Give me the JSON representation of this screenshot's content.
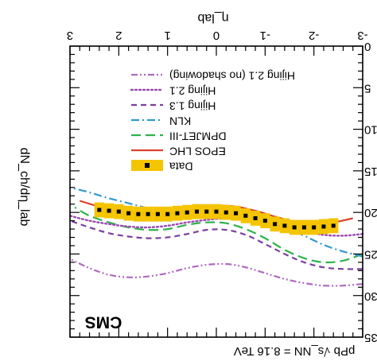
{
  "chart_data": {
    "type": "line",
    "xlabel": "η_lab",
    "ylabel": "dN_ch/dη_lab",
    "xlim": [
      -3,
      3
    ],
    "ylim": [
      0,
      35
    ],
    "xticks": [
      -3,
      -2,
      -1,
      0,
      1,
      2,
      3
    ],
    "yticks": [
      0,
      5,
      10,
      15,
      20,
      25,
      30,
      35
    ],
    "annotation_left": "CMS",
    "annotation_right": "pPb √s_NN = 8.16 TeV",
    "legend_position": "top-right",
    "series": [
      {
        "name": "Data",
        "style": "points-with-band",
        "color": "#000000",
        "band_color": "#f5c400",
        "x": [
          -2.4,
          -2.2,
          -2.0,
          -1.8,
          -1.6,
          -1.4,
          -1.2,
          -1.0,
          -0.8,
          -0.6,
          -0.4,
          -0.2,
          0.0,
          0.2,
          0.4,
          0.6,
          0.8,
          1.0,
          1.2,
          1.4,
          1.6,
          1.8,
          2.0,
          2.2,
          2.4
        ],
        "y": [
          21.6,
          21.7,
          21.8,
          21.8,
          21.8,
          21.6,
          21.4,
          21.0,
          20.7,
          20.4,
          20.1,
          20.0,
          19.9,
          19.9,
          19.9,
          20.0,
          20.1,
          20.2,
          20.2,
          20.2,
          20.2,
          20.1,
          19.9,
          19.8,
          19.7
        ],
        "band": 0.9
      },
      {
        "name": "EPOS LHC",
        "style": "solid",
        "color": "#d9412b",
        "x": [
          -2.8,
          -2.4,
          -2.0,
          -1.6,
          -1.2,
          -0.8,
          -0.4,
          0.0,
          0.4,
          0.8,
          1.2,
          1.6,
          2.0,
          2.4,
          2.8
        ],
        "y": [
          20.7,
          21.2,
          21.3,
          21.1,
          20.5,
          19.8,
          19.3,
          19.2,
          19.5,
          20.0,
          20.2,
          20.1,
          19.7,
          19.3,
          18.6
        ]
      },
      {
        "name": "DPMJET-III",
        "style": "long-dashed",
        "color": "#2db34a",
        "x": [
          -3.0,
          -2.6,
          -2.2,
          -1.8,
          -1.4,
          -1.0,
          -0.6,
          -0.2,
          0.2,
          0.6,
          1.0,
          1.4,
          1.8,
          2.2,
          2.6,
          2.9
        ],
        "y": [
          25.0,
          25.8,
          26.0,
          25.5,
          24.5,
          23.1,
          22.0,
          21.3,
          21.2,
          21.5,
          22.0,
          22.1,
          21.8,
          21.2,
          20.4,
          19.4
        ]
      },
      {
        "name": "KLN",
        "style": "dash-dot",
        "color": "#3399cc",
        "x": [
          -3.0,
          -2.6,
          -2.2,
          -1.8,
          -1.4,
          -1.0,
          -0.6,
          -0.2,
          0.2,
          0.6,
          1.0,
          1.4,
          1.8,
          2.2,
          2.6,
          3.0
        ],
        "y": [
          25.3,
          24.7,
          23.9,
          22.8,
          21.8,
          21.0,
          20.5,
          20.3,
          20.4,
          20.3,
          20.0,
          19.5,
          18.9,
          18.3,
          17.6,
          17.0
        ]
      },
      {
        "name": "Hijing 1.3",
        "style": "dashed",
        "color": "#7b3fa0",
        "x": [
          -3.0,
          -2.6,
          -2.2,
          -1.8,
          -1.4,
          -1.0,
          -0.6,
          -0.2,
          0.2,
          0.6,
          1.0,
          1.4,
          1.8,
          2.2,
          2.6,
          3.0
        ],
        "y": [
          26.8,
          26.8,
          26.6,
          26.0,
          25.0,
          23.8,
          22.7,
          22.1,
          22.1,
          22.6,
          23.0,
          23.1,
          22.9,
          22.5,
          21.8,
          21.0
        ]
      },
      {
        "name": "Hijing 2.1",
        "style": "dotted",
        "color": "#9a4db0",
        "x": [
          -3.0,
          -2.6,
          -2.2,
          -1.8,
          -1.4,
          -1.0,
          -0.6,
          -0.2,
          0.2,
          0.6,
          1.0,
          1.4,
          1.8,
          2.2,
          2.6,
          3.0
        ],
        "y": [
          22.6,
          22.8,
          22.7,
          22.3,
          21.8,
          21.2,
          20.8,
          20.7,
          20.9,
          21.2,
          21.6,
          21.8,
          21.7,
          21.4,
          21.0,
          20.4
        ]
      },
      {
        "name": "Hijing 2.1 (no shadowing)",
        "style": "dash-dot-dot",
        "color": "#b06ac0",
        "x": [
          -3.0,
          -2.6,
          -2.2,
          -1.8,
          -1.4,
          -1.0,
          -0.6,
          -0.2,
          0.2,
          0.6,
          1.0,
          1.4,
          1.8,
          2.2,
          2.6,
          3.0
        ],
        "y": [
          28.6,
          28.8,
          28.8,
          28.5,
          28.0,
          27.3,
          26.6,
          26.2,
          26.3,
          26.7,
          27.3,
          27.7,
          27.8,
          27.5,
          26.7,
          25.6
        ]
      }
    ]
  }
}
